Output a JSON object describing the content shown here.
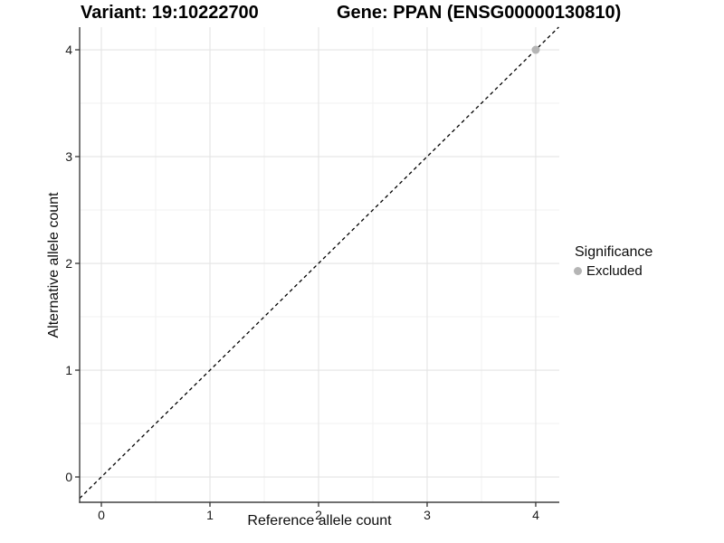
{
  "chart_data": {
    "type": "scatter",
    "title_left": "Variant: 19:10222700",
    "title_right": "Gene: PPAN (ENSG00000130810)",
    "xlabel": "Reference allele count",
    "ylabel": "Alternative allele count",
    "xlim": [
      -0.2,
      4.217
    ],
    "ylim": [
      -0.237,
      4.212
    ],
    "xticks": [
      0,
      1,
      2,
      3,
      4
    ],
    "yticks": [
      0,
      1,
      2,
      3,
      4
    ],
    "x_minor_gridlines": [
      0.5,
      1.5,
      2.5,
      3.5
    ],
    "y_minor_gridlines": [
      0.5,
      1.5,
      2.5,
      3.5
    ],
    "grid": "major and minor gridlines, light gray on white panel",
    "legend_position": "right",
    "legend_title": "Significance",
    "reference_line": {
      "equation": "y = x",
      "style": "dashed",
      "color": "#000000"
    },
    "series": [
      {
        "name": "Excluded",
        "color": "#b5b5b5",
        "points": [
          {
            "x": 4,
            "y": 4
          }
        ]
      }
    ]
  },
  "style": {
    "background": "#ffffff",
    "grid_major_color": "#e4e4e4",
    "grid_minor_color": "#f2f2f2",
    "axis_line_color": "#404040",
    "tick_color": "#333333",
    "tick_label_color": "#1a1a1a",
    "text_color": "#000000"
  }
}
